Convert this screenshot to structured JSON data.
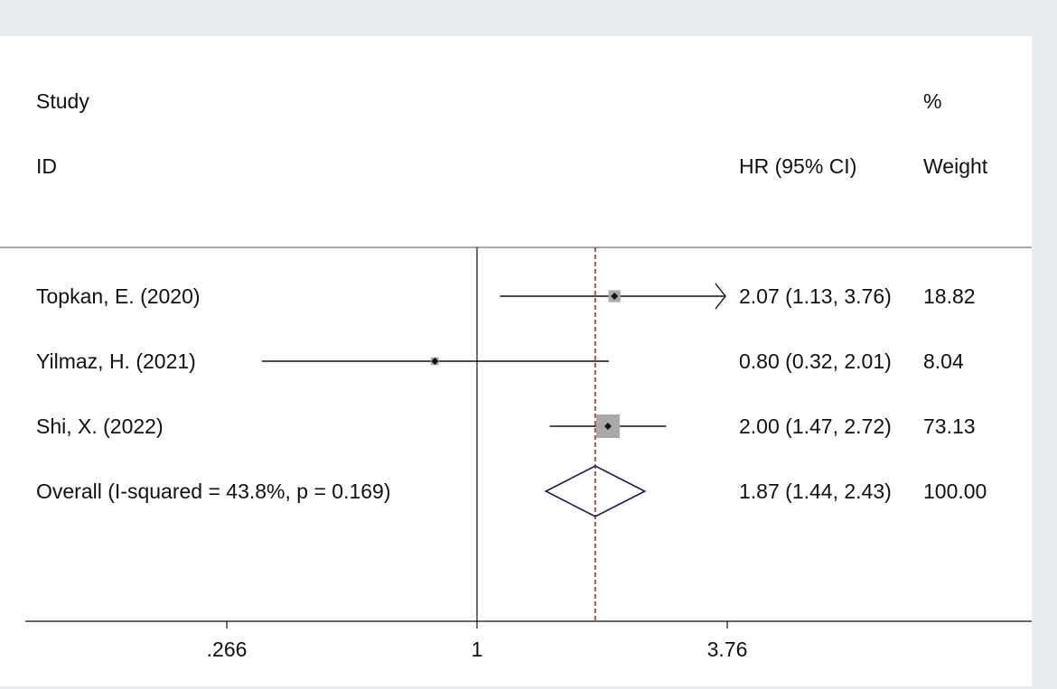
{
  "chart_data": {
    "type": "forest",
    "x_scale": "log",
    "reference_line": 1,
    "overall_reference_line": 1.87,
    "headers": {
      "study_line1": "Study",
      "study_line2": "ID",
      "estimate": "HR (95% CI)",
      "weight_line1": "%",
      "weight_line2": "Weight"
    },
    "studies": [
      {
        "label": "Topkan, E. (2020)",
        "hr": 2.07,
        "lower": 1.13,
        "upper": 3.76,
        "weight": 18.82,
        "hr_text": "2.07 (1.13, 3.76)",
        "weight_text": "18.82",
        "arrow_right": true
      },
      {
        "label": "Yilmaz, H. (2021)",
        "hr": 0.8,
        "lower": 0.32,
        "upper": 2.01,
        "weight": 8.04,
        "hr_text": "0.80 (0.32, 2.01)",
        "weight_text": "8.04",
        "arrow_right": false
      },
      {
        "label": "Shi, X. (2022)",
        "hr": 2.0,
        "lower": 1.47,
        "upper": 2.72,
        "weight": 73.13,
        "hr_text": "2.00 (1.47, 2.72)",
        "weight_text": "73.13",
        "arrow_right": false
      }
    ],
    "overall": {
      "label": "Overall  (I-squared = 43.8%, p = 0.169)",
      "hr": 1.87,
      "lower": 1.44,
      "upper": 2.43,
      "hr_text": "1.87 (1.44, 2.43)",
      "weight_text": "100.00"
    },
    "x_ticks": [
      0.266,
      1,
      3.76
    ],
    "x_tick_labels": [
      ".266",
      "1",
      "3.76"
    ],
    "colors": {
      "background": "#ffffff",
      "outer": "#e8edf0",
      "pooled_line": "#8b1a1a",
      "diamond": "#1a1a4e",
      "box": "#a9a9a9",
      "text": "#111111"
    }
  }
}
